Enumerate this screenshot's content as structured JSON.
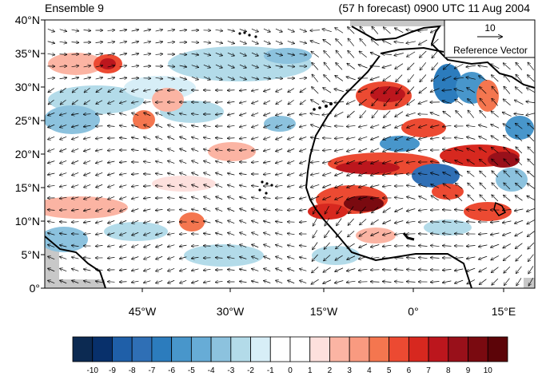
{
  "header": {
    "left": "Ensemble 9",
    "right": "(57 h forecast) 0900 UTC 11 Aug 2004"
  },
  "axes": {
    "lat_labels": [
      "40°N",
      "35°N",
      "30°N",
      "25°N",
      "20°N",
      "15°N",
      "10°N",
      "5°N",
      "0°"
    ],
    "lon_labels": [
      "45°W",
      "30°W",
      "15°W",
      "0°",
      "15°E"
    ]
  },
  "reference_vector": {
    "magnitude": "10",
    "label": "Reference Vector"
  },
  "colorbar": {
    "ticks": [
      "-10",
      "-9",
      "-8",
      "-7",
      "-6",
      "-5",
      "-4",
      "-3",
      "-2",
      "-1",
      "0",
      "1",
      "2",
      "3",
      "4",
      "5",
      "6",
      "7",
      "8",
      "9",
      "10"
    ],
    "colors": [
      "#0c2a52",
      "#08306b",
      "#1f5fa8",
      "#2f6fb5",
      "#2c7cbd",
      "#4896cb",
      "#67acd6",
      "#8cc2de",
      "#b3dbe9",
      "#d7eef7",
      "#ffffff",
      "#ffffff",
      "#fde0dd",
      "#fbb4a3",
      "#f99a80",
      "#f4764f",
      "#ec4a32",
      "#d7281f",
      "#bc161d",
      "#99101a",
      "#7a0a10",
      "#5c0408"
    ]
  },
  "colors": {
    "land": "#c8c8c8"
  }
}
